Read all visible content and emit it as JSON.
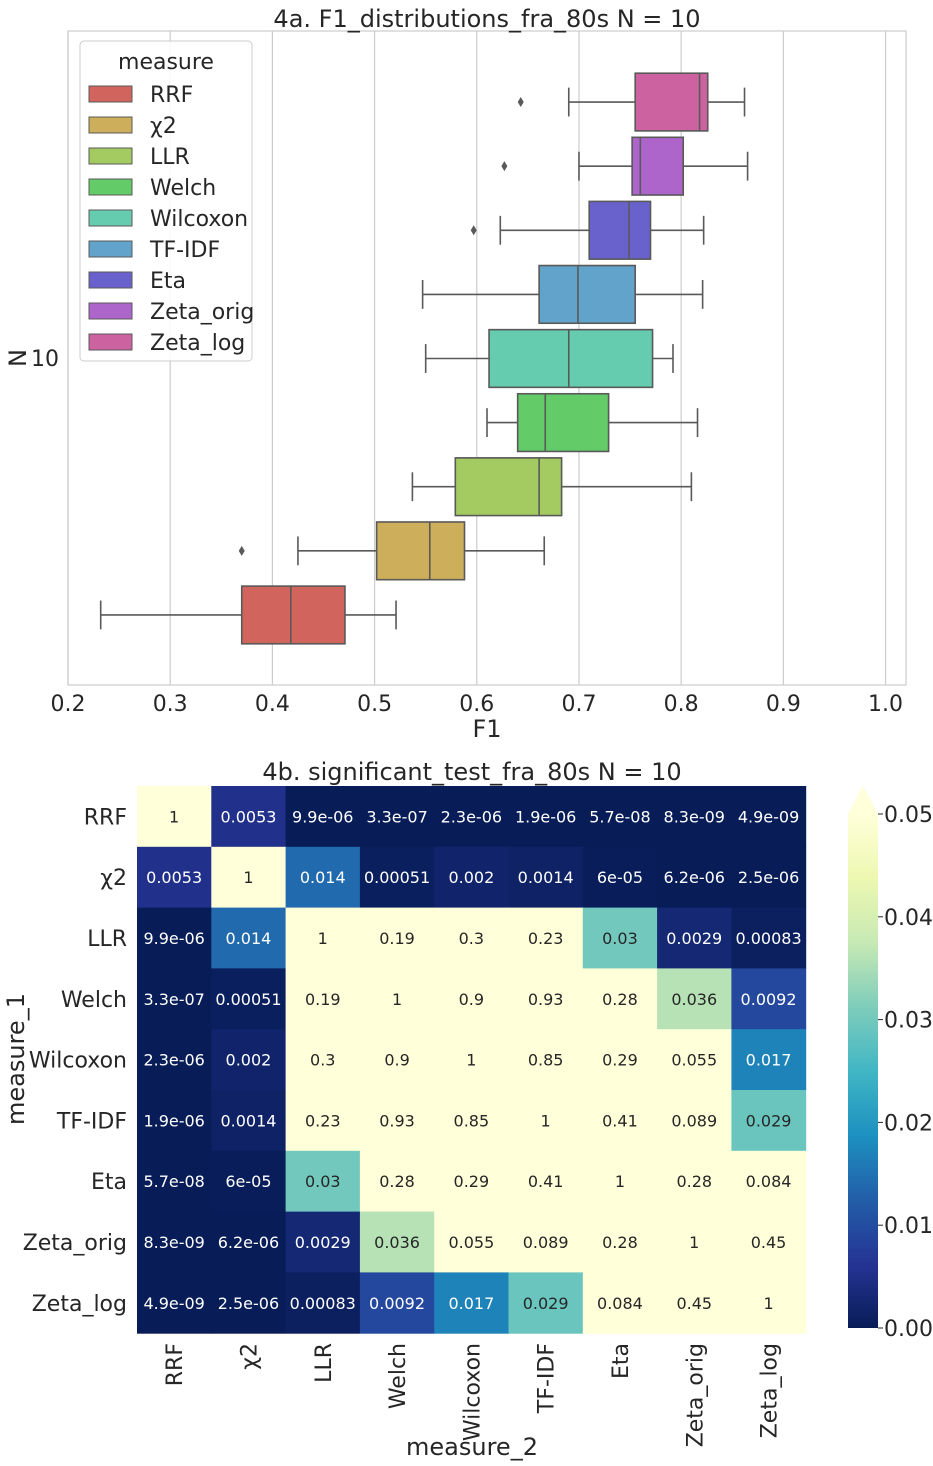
{
  "chart_data": [
    {
      "type": "box",
      "title": "4a. F1_distributions_fra_80s N = 10",
      "xlabel": "F1",
      "ylabel": "N",
      "y_category": "10",
      "xlim": [
        0.2,
        1.02
      ],
      "x_ticks": [
        "0.2",
        "0.3",
        "0.4",
        "0.5",
        "0.6",
        "0.7",
        "0.8",
        "0.9",
        "1.0"
      ],
      "grid": "vertical",
      "legend_title": "measure",
      "legend_position": "top-left",
      "series": [
        {
          "name": "RRF",
          "color": "#d1655e",
          "min": 0.232,
          "q1": 0.37,
          "median": 0.418,
          "q3": 0.471,
          "max": 0.521,
          "outliers": []
        },
        {
          "name": "χ2",
          "color": "#cdae5b",
          "min": 0.425,
          "q1": 0.502,
          "median": 0.554,
          "q3": 0.588,
          "max": 0.666,
          "outliers": [
            0.37
          ]
        },
        {
          "name": "LLR",
          "color": "#a4cb61",
          "min": 0.537,
          "q1": 0.579,
          "median": 0.661,
          "q3": 0.683,
          "max": 0.81,
          "outliers": []
        },
        {
          "name": "Welch",
          "color": "#63cb68",
          "min": 0.61,
          "q1": 0.64,
          "median": 0.667,
          "q3": 0.729,
          "max": 0.816,
          "outliers": []
        },
        {
          "name": "Wilcoxon",
          "color": "#66ccaf",
          "min": 0.55,
          "q1": 0.612,
          "median": 0.69,
          "q3": 0.772,
          "max": 0.792,
          "outliers": []
        },
        {
          "name": "TF-IDF",
          "color": "#62a3cb",
          "min": 0.547,
          "q1": 0.661,
          "median": 0.699,
          "q3": 0.755,
          "max": 0.821,
          "outliers": []
        },
        {
          "name": "Eta",
          "color": "#6a62cc",
          "min": 0.623,
          "q1": 0.71,
          "median": 0.749,
          "q3": 0.77,
          "max": 0.822,
          "outliers": [
            0.597
          ]
        },
        {
          "name": "Zeta_orig",
          "color": "#ad65cb",
          "min": 0.7,
          "q1": 0.752,
          "median": 0.76,
          "q3": 0.802,
          "max": 0.865,
          "outliers": [
            0.627
          ]
        },
        {
          "name": "Zeta_log",
          "color": "#cd62a1",
          "min": 0.69,
          "q1": 0.755,
          "median": 0.818,
          "q3": 0.826,
          "max": 0.862,
          "outliers": [
            0.643
          ]
        }
      ]
    },
    {
      "type": "heatmap",
      "title": "4b. significant_test_fra_80s N = 10",
      "xlabel": "measure_2",
      "ylabel": "measure_1",
      "x_categories": [
        "RRF",
        "χ2",
        "LLR",
        "Welch",
        "Wilcoxon",
        "TF-IDF",
        "Eta",
        "Zeta_orig",
        "Zeta_log"
      ],
      "y_categories": [
        "RRF",
        "χ2",
        "LLR",
        "Welch",
        "Wilcoxon",
        "TF-IDF",
        "Eta",
        "Zeta_orig",
        "Zeta_log"
      ],
      "colormap": "YlGnBu_r",
      "vmin": 0,
      "vmax": 0.05,
      "colorbar_ticks": [
        "0.00",
        "0.01",
        "0.02",
        "0.03",
        "0.04",
        "0.05"
      ],
      "colorbar_extend": "max",
      "values": [
        [
          1,
          0.0053,
          9.9e-06,
          3.3e-07,
          2.3e-06,
          1.9e-06,
          5.7e-08,
          8.3e-09,
          4.9e-09
        ],
        [
          0.0053,
          1,
          0.014,
          0.00051,
          0.002,
          0.0014,
          6e-05,
          6.2e-06,
          2.5e-06
        ],
        [
          9.9e-06,
          0.014,
          1,
          0.19,
          0.3,
          0.23,
          0.03,
          0.0029,
          0.00083
        ],
        [
          3.3e-07,
          0.00051,
          0.19,
          1,
          0.9,
          0.93,
          0.28,
          0.036,
          0.0092
        ],
        [
          2.3e-06,
          0.002,
          0.3,
          0.9,
          1,
          0.85,
          0.29,
          0.055,
          0.017
        ],
        [
          1.9e-06,
          0.0014,
          0.23,
          0.93,
          0.85,
          1,
          0.41,
          0.089,
          0.029
        ],
        [
          5.7e-08,
          6e-05,
          0.03,
          0.28,
          0.29,
          0.41,
          1,
          0.28,
          0.084
        ],
        [
          8.3e-09,
          6.2e-06,
          0.0029,
          0.036,
          0.055,
          0.089,
          0.28,
          1,
          0.45
        ],
        [
          4.9e-09,
          2.5e-06,
          0.00083,
          0.0092,
          0.017,
          0.029,
          0.084,
          0.45,
          1
        ]
      ],
      "labels": [
        [
          "1",
          "0.0053",
          "9.9e-06",
          "3.3e-07",
          "2.3e-06",
          "1.9e-06",
          "5.7e-08",
          "8.3e-09",
          "4.9e-09"
        ],
        [
          "0.0053",
          "1",
          "0.014",
          "0.00051",
          "0.002",
          "0.0014",
          "6e-05",
          "6.2e-06",
          "2.5e-06"
        ],
        [
          "9.9e-06",
          "0.014",
          "1",
          "0.19",
          "0.3",
          "0.23",
          "0.03",
          "0.0029",
          "0.00083"
        ],
        [
          "3.3e-07",
          "0.00051",
          "0.19",
          "1",
          "0.9",
          "0.93",
          "0.28",
          "0.036",
          "0.0092"
        ],
        [
          "2.3e-06",
          "0.002",
          "0.3",
          "0.9",
          "1",
          "0.85",
          "0.29",
          "0.055",
          "0.017"
        ],
        [
          "1.9e-06",
          "0.0014",
          "0.23",
          "0.93",
          "0.85",
          "1",
          "0.41",
          "0.089",
          "0.029"
        ],
        [
          "5.7e-08",
          "6e-05",
          "0.03",
          "0.28",
          "0.29",
          "0.41",
          "1",
          "0.28",
          "0.084"
        ],
        [
          "8.3e-09",
          "6.2e-06",
          "0.0029",
          "0.036",
          "0.055",
          "0.089",
          "0.28",
          "1",
          "0.45"
        ],
        [
          "4.9e-09",
          "2.5e-06",
          "0.00083",
          "0.0092",
          "0.017",
          "0.029",
          "0.084",
          "0.45",
          "1"
        ]
      ]
    }
  ]
}
